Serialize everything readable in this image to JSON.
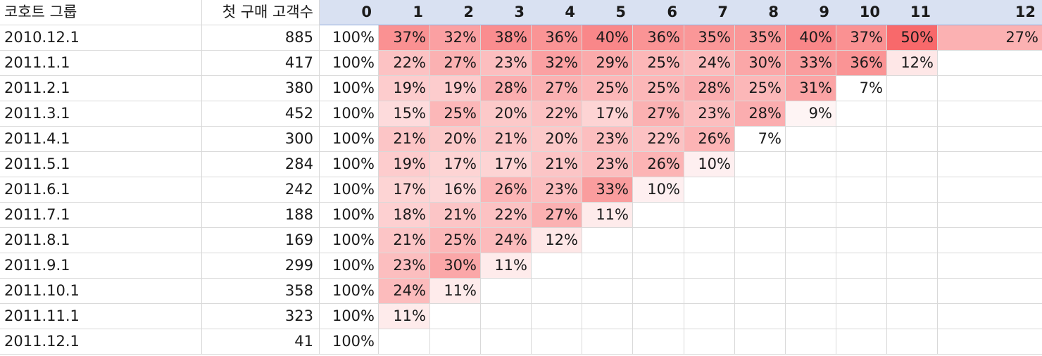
{
  "sheet": {
    "header": {
      "cohort_label": "코호트 그룹",
      "customers_label": "첫 구매 고객수",
      "periods": [
        "0",
        "1",
        "2",
        "3",
        "4",
        "5",
        "6",
        "7",
        "8",
        "9",
        "10",
        "11",
        "12"
      ]
    },
    "rows": [
      {
        "cohort": "2010.12.1",
        "count": "885",
        "values": [
          "100%",
          "37%",
          "32%",
          "38%",
          "36%",
          "40%",
          "36%",
          "35%",
          "35%",
          "40%",
          "37%",
          "50%",
          "27%"
        ]
      },
      {
        "cohort": "2011.1.1",
        "count": "417",
        "values": [
          "100%",
          "22%",
          "27%",
          "23%",
          "32%",
          "29%",
          "25%",
          "24%",
          "30%",
          "33%",
          "36%",
          "12%",
          ""
        ]
      },
      {
        "cohort": "2011.2.1",
        "count": "380",
        "values": [
          "100%",
          "19%",
          "19%",
          "28%",
          "27%",
          "25%",
          "25%",
          "28%",
          "25%",
          "31%",
          "7%",
          "",
          ""
        ]
      },
      {
        "cohort": "2011.3.1",
        "count": "452",
        "values": [
          "100%",
          "15%",
          "25%",
          "20%",
          "22%",
          "17%",
          "27%",
          "23%",
          "28%",
          "9%",
          "",
          "",
          ""
        ]
      },
      {
        "cohort": "2011.4.1",
        "count": "300",
        "values": [
          "100%",
          "21%",
          "20%",
          "21%",
          "20%",
          "23%",
          "22%",
          "26%",
          "7%",
          "",
          "",
          "",
          ""
        ]
      },
      {
        "cohort": "2011.5.1",
        "count": "284",
        "values": [
          "100%",
          "19%",
          "17%",
          "17%",
          "21%",
          "23%",
          "26%",
          "10%",
          "",
          "",
          "",
          "",
          ""
        ]
      },
      {
        "cohort": "2011.6.1",
        "count": "242",
        "values": [
          "100%",
          "17%",
          "16%",
          "26%",
          "23%",
          "33%",
          "10%",
          "",
          "",
          "",
          "",
          "",
          ""
        ]
      },
      {
        "cohort": "2011.7.1",
        "count": "188",
        "values": [
          "100%",
          "18%",
          "21%",
          "22%",
          "27%",
          "11%",
          "",
          "",
          "",
          "",
          "",
          "",
          ""
        ]
      },
      {
        "cohort": "2011.8.1",
        "count": "169",
        "values": [
          "100%",
          "21%",
          "25%",
          "24%",
          "12%",
          "",
          "",
          "",
          "",
          "",
          "",
          "",
          ""
        ]
      },
      {
        "cohort": "2011.9.1",
        "count": "299",
        "values": [
          "100%",
          "23%",
          "30%",
          "11%",
          "",
          "",
          "",
          "",
          "",
          "",
          "",
          "",
          ""
        ]
      },
      {
        "cohort": "2011.10.1",
        "count": "358",
        "values": [
          "100%",
          "24%",
          "11%",
          "",
          "",
          "",
          "",
          "",
          "",
          "",
          "",
          "",
          ""
        ]
      },
      {
        "cohort": "2011.11.1",
        "count": "323",
        "values": [
          "100%",
          "11%",
          "",
          "",
          "",
          "",
          "",
          "",
          "",
          "",
          "",
          "",
          ""
        ]
      },
      {
        "cohort": "2011.12.1",
        "count": "41",
        "values": [
          "100%",
          "",
          "",
          "",
          "",
          "",
          "",
          "",
          "",
          "",
          "",
          "",
          ""
        ]
      }
    ],
    "heat_colors": {
      "min": "#ffffff",
      "max": "#f8696b"
    }
  }
}
